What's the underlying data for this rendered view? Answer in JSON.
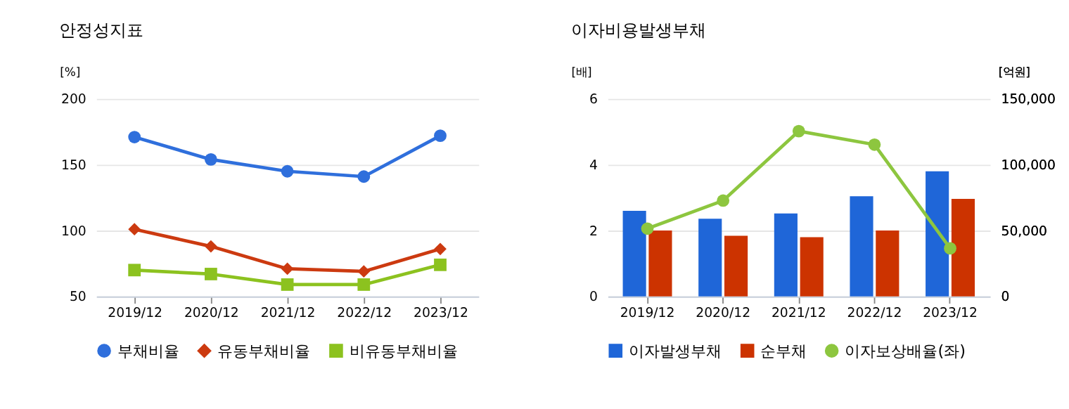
{
  "chart_data": [
    {
      "type": "line",
      "title": "안정성지표",
      "ylabel": "[%]",
      "categories": [
        "2019/12",
        "2020/12",
        "2021/12",
        "2022/12",
        "2023/12"
      ],
      "series": [
        {
          "name": "부채비율",
          "color": "#2f6fdc",
          "marker": "circle",
          "values": [
            171,
            154,
            145,
            141,
            172
          ]
        },
        {
          "name": "유동부채비율",
          "color": "#cc3a10",
          "marker": "diamond",
          "values": [
            101,
            88,
            71,
            69,
            86
          ]
        },
        {
          "name": "비유동부채비율",
          "color": "#8cc21f",
          "marker": "square",
          "values": [
            70,
            67,
            59,
            59,
            74
          ]
        }
      ],
      "ylim": [
        50,
        200
      ],
      "yticks": [
        50,
        100,
        150,
        200
      ],
      "grid": "y",
      "legend": "bottom"
    },
    {
      "type": "bar",
      "title": "이자비용발생부채",
      "ylabel": "[배]",
      "y2label": "[억원]",
      "categories": [
        "2019/12",
        "2020/12",
        "2021/12",
        "2022/12",
        "2023/12"
      ],
      "series": [
        {
          "name": "이자발생부채",
          "color": "#1f66d8",
          "axis": "y2",
          "values": [
            65000,
            59000,
            63000,
            76000,
            95000
          ]
        },
        {
          "name": "순부채",
          "color": "#cc3300",
          "axis": "y2",
          "values": [
            50000,
            46000,
            45000,
            50000,
            74000
          ]
        },
        {
          "name": "이자보상배율(좌)",
          "color": "#8dc63f",
          "type": "line",
          "marker": "circle",
          "axis": "y",
          "values": [
            2.06,
            2.91,
            5.02,
            4.61,
            1.46
          ]
        }
      ],
      "ylim": [
        0,
        6
      ],
      "yticks": [
        0,
        2,
        4,
        6
      ],
      "y2lim": [
        0,
        150000
      ],
      "y2ticks": [
        0,
        {
          "value": 50000,
          "label": "50,000"
        },
        {
          "value": 100000,
          "label": "100,000"
        },
        {
          "value": 150000,
          "label": "150,000"
        }
      ],
      "grid": "y",
      "legend": "bottom"
    }
  ]
}
